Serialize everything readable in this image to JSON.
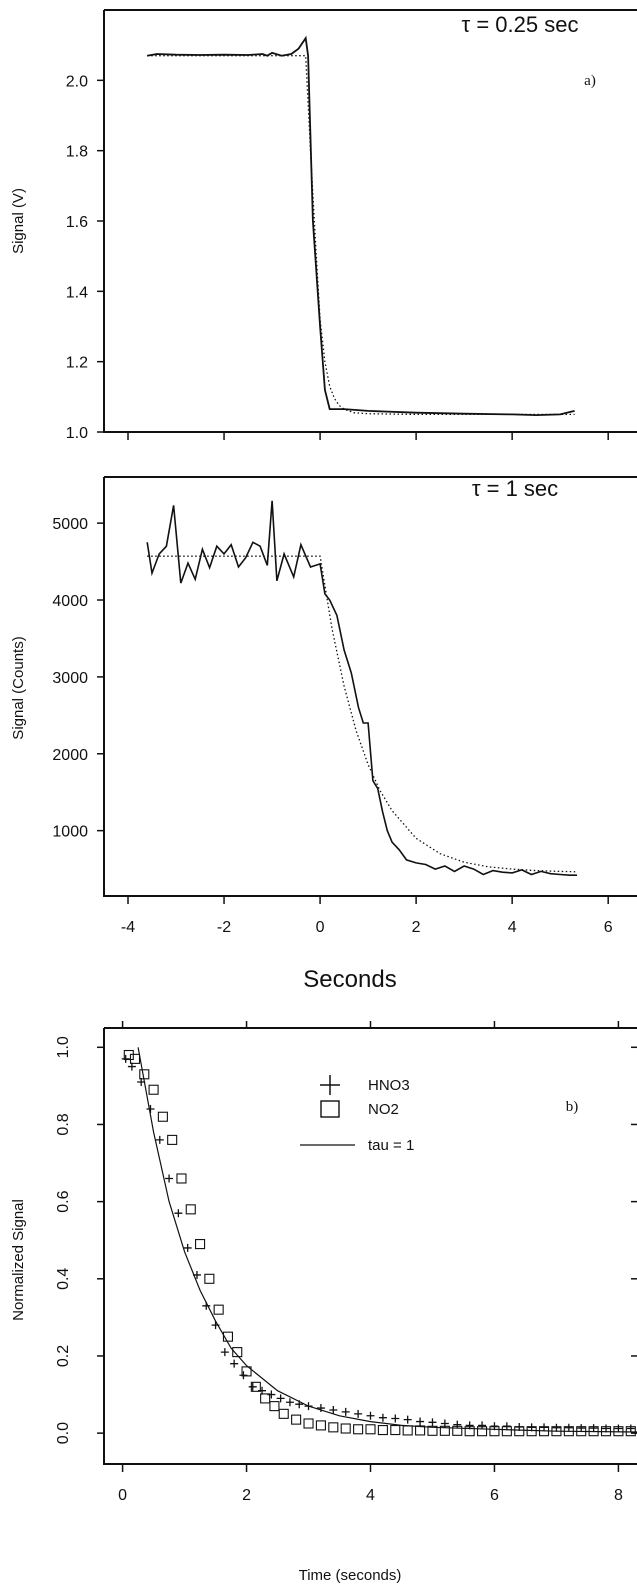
{
  "chart_data": [
    {
      "type": "line",
      "panel_label": "a)",
      "annotation": "τ = 0.25 sec",
      "ylabel": "Signal (V)",
      "xlim": [
        -4.5,
        6.6
      ],
      "ylim": [
        1.0,
        2.2
      ],
      "yticks": [
        "1.0",
        "1.2",
        "1.4",
        "1.6",
        "1.8",
        "2.0"
      ],
      "ytick_values": [
        1.0,
        1.2,
        1.4,
        1.6,
        1.8,
        2.0
      ],
      "grid": false,
      "series": [
        {
          "style": "solid",
          "x": [
            -3.6,
            -3.4,
            -3.0,
            -2.5,
            -2.0,
            -1.5,
            -1.2,
            -1.1,
            -1.0,
            -0.8,
            -0.6,
            -0.45,
            -0.3,
            -0.25,
            -0.15,
            0.0,
            0.1,
            0.2,
            0.5,
            1.0,
            2.0,
            3.0,
            4.0,
            4.5,
            5.0,
            5.3
          ],
          "y": [
            2.07,
            2.075,
            2.073,
            2.072,
            2.073,
            2.072,
            2.075,
            2.07,
            2.078,
            2.07,
            2.075,
            2.09,
            2.12,
            2.07,
            1.6,
            1.3,
            1.12,
            1.065,
            1.065,
            1.06,
            1.055,
            1.052,
            1.05,
            1.048,
            1.05,
            1.06
          ]
        },
        {
          "style": "dotted",
          "x": [
            -3.6,
            -0.3,
            -0.2,
            -0.1,
            0.0,
            0.1,
            0.2,
            0.3,
            0.4,
            0.5,
            0.7,
            1.0,
            2.0,
            3.0,
            5.3
          ],
          "y": [
            2.07,
            2.07,
            1.8,
            1.55,
            1.32,
            1.2,
            1.13,
            1.095,
            1.075,
            1.065,
            1.055,
            1.052,
            1.05,
            1.05,
            1.05
          ]
        }
      ]
    },
    {
      "type": "line",
      "annotation": "τ = 1 sec",
      "ylabel": "Signal (Counts)",
      "xlabel": "Seconds",
      "xlim": [
        -4.5,
        6.6
      ],
      "ylim": [
        150,
        5600
      ],
      "xticks": [
        "-4",
        "-2",
        "0",
        "2",
        "4",
        "6"
      ],
      "xtick_values": [
        -4,
        -2,
        0,
        2,
        4,
        6
      ],
      "yticks": [
        "1000",
        "2000",
        "3000",
        "4000",
        "5000"
      ],
      "ytick_values": [
        1000,
        2000,
        3000,
        4000,
        5000
      ],
      "grid": false,
      "series": [
        {
          "style": "solid",
          "x": [
            -3.6,
            -3.5,
            -3.35,
            -3.2,
            -3.05,
            -2.9,
            -2.75,
            -2.6,
            -2.45,
            -2.3,
            -2.15,
            -2.0,
            -1.85,
            -1.7,
            -1.55,
            -1.4,
            -1.25,
            -1.1,
            -1.0,
            -0.9,
            -0.75,
            -0.55,
            -0.4,
            -0.2,
            0.0,
            0.1,
            0.2,
            0.35,
            0.5,
            0.65,
            0.8,
            0.9,
            1.0,
            1.1,
            1.2,
            1.3,
            1.4,
            1.5,
            1.65,
            1.8,
            2.0,
            2.2,
            2.4,
            2.6,
            2.8,
            3.0,
            3.2,
            3.4,
            3.6,
            3.8,
            4.0,
            4.2,
            4.4,
            4.6,
            4.8,
            5.0,
            5.2,
            5.35
          ],
          "y": [
            4750,
            4350,
            4600,
            4700,
            5230,
            4220,
            4480,
            4270,
            4660,
            4420,
            4700,
            4600,
            4720,
            4430,
            4550,
            4750,
            4700,
            4450,
            5290,
            4250,
            4600,
            4300,
            4720,
            4430,
            4470,
            4080,
            4000,
            3800,
            3350,
            3050,
            2600,
            2400,
            2400,
            1650,
            1550,
            1250,
            1000,
            850,
            750,
            620,
            580,
            560,
            500,
            540,
            470,
            540,
            500,
            430,
            480,
            460,
            450,
            490,
            430,
            470,
            440,
            430,
            420,
            420
          ]
        },
        {
          "style": "dotted",
          "x": [
            -3.6,
            0.0,
            0.25,
            0.5,
            0.75,
            1.0,
            1.25,
            1.5,
            2.0,
            2.5,
            3.0,
            3.5,
            4.0,
            4.5,
            5.0,
            5.35
          ],
          "y": [
            4570,
            4570,
            3620,
            2880,
            2300,
            1860,
            1520,
            1260,
            900,
            700,
            590,
            530,
            500,
            480,
            470,
            465
          ]
        }
      ]
    },
    {
      "type": "scatter",
      "panel_label": "b)",
      "xlabel": "Time (seconds)",
      "ylabel": "Normalized Signal",
      "xlim": [
        -0.3,
        8.3
      ],
      "ylim": [
        -0.08,
        1.05
      ],
      "xticks": [
        "0",
        "2",
        "4",
        "6",
        "8"
      ],
      "xtick_values": [
        0,
        2,
        4,
        6,
        8
      ],
      "yticks": [
        "0.0",
        "0.2",
        "0.4",
        "0.6",
        "0.8",
        "1.0"
      ],
      "ytick_values": [
        0.0,
        0.2,
        0.4,
        0.6,
        0.8,
        1.0
      ],
      "grid": false,
      "legend": [
        "HNO3",
        "NO2",
        "tau = 1"
      ],
      "legend_position": "top-center",
      "series": [
        {
          "name": "HNO3",
          "marker": "plus",
          "x": [
            0.05,
            0.15,
            0.3,
            0.45,
            0.6,
            0.75,
            0.9,
            1.05,
            1.2,
            1.35,
            1.5,
            1.65,
            1.8,
            1.95,
            2.1,
            2.25,
            2.4,
            2.55,
            2.7,
            2.85,
            3.0,
            3.2,
            3.4,
            3.6,
            3.8,
            4.0,
            4.2,
            4.4,
            4.6,
            4.8,
            5.0,
            5.2,
            5.4,
            5.6,
            5.8,
            6.0,
            6.2,
            6.4,
            6.6,
            6.8,
            7.0,
            7.2,
            7.4,
            7.6,
            7.8,
            8.0,
            8.2
          ],
          "y": [
            0.97,
            0.95,
            0.91,
            0.84,
            0.76,
            0.66,
            0.57,
            0.48,
            0.41,
            0.33,
            0.28,
            0.21,
            0.18,
            0.15,
            0.12,
            0.11,
            0.1,
            0.09,
            0.08,
            0.075,
            0.07,
            0.065,
            0.06,
            0.055,
            0.05,
            0.045,
            0.04,
            0.038,
            0.035,
            0.03,
            0.028,
            0.025,
            0.022,
            0.02,
            0.02,
            0.018,
            0.018,
            0.016,
            0.015,
            0.015,
            0.014,
            0.014,
            0.013,
            0.013,
            0.012,
            0.012,
            0.012
          ]
        },
        {
          "name": "NO2",
          "marker": "square",
          "x": [
            0.1,
            0.2,
            0.35,
            0.5,
            0.65,
            0.8,
            0.95,
            1.1,
            1.25,
            1.4,
            1.55,
            1.7,
            1.85,
            2.0,
            2.15,
            2.3,
            2.45,
            2.6,
            2.8,
            3.0,
            3.2,
            3.4,
            3.6,
            3.8,
            4.0,
            4.2,
            4.4,
            4.6,
            4.8,
            5.0,
            5.2,
            5.4,
            5.6,
            5.8,
            6.0,
            6.2,
            6.4,
            6.6,
            6.8,
            7.0,
            7.2,
            7.4,
            7.6,
            7.8,
            8.0,
            8.2
          ],
          "y": [
            0.98,
            0.97,
            0.93,
            0.89,
            0.82,
            0.76,
            0.66,
            0.58,
            0.49,
            0.4,
            0.32,
            0.25,
            0.21,
            0.16,
            0.12,
            0.09,
            0.07,
            0.05,
            0.035,
            0.025,
            0.02,
            0.015,
            0.012,
            0.01,
            0.01,
            0.008,
            0.008,
            0.007,
            0.007,
            0.006,
            0.006,
            0.006,
            0.005,
            0.005,
            0.005,
            0.005,
            0.005,
            0.005,
            0.005,
            0.005,
            0.005,
            0.005,
            0.005,
            0.005,
            0.005,
            0.005
          ]
        },
        {
          "name": "tau = 1",
          "marker": "line",
          "x": [
            0.25,
            0.5,
            0.75,
            1.0,
            1.25,
            1.5,
            1.75,
            2.0,
            2.5,
            3.0,
            3.5,
            4.0,
            4.5,
            5.0,
            6.0,
            7.0,
            8.3
          ],
          "y": [
            1.0,
            0.78,
            0.6,
            0.47,
            0.37,
            0.29,
            0.22,
            0.175,
            0.11,
            0.07,
            0.045,
            0.03,
            0.02,
            0.015,
            0.01,
            0.005,
            0.003
          ]
        }
      ]
    }
  ]
}
